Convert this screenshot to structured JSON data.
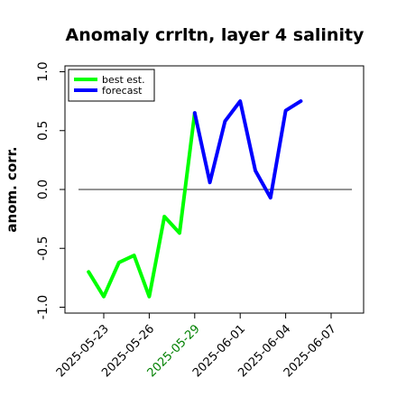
{
  "chart_data": {
    "type": "line",
    "title": "Anomaly crrltn, layer 4 salinity",
    "xlabel": "",
    "ylabel": "anom. corr.",
    "ylim": [
      -1.0,
      1.0
    ],
    "yticks": [
      -1.0,
      -0.5,
      0.0,
      0.5,
      1.0
    ],
    "ytick_labels": [
      "-1.0",
      "-0.5",
      "0.0",
      "0.5",
      "1.0"
    ],
    "xticks": [
      "2025-05-23",
      "2025-05-26",
      "2025-05-29",
      "2025-06-01",
      "2025-06-04",
      "2025-06-07"
    ],
    "xtick_colors": [
      "#000000",
      "#000000",
      "#008000",
      "#000000",
      "#000000",
      "#000000"
    ],
    "reference_line": 0.0,
    "legend_position": "top-left",
    "series": [
      {
        "name": "best est.",
        "color": "#00ff00",
        "x": [
          "2025-05-22",
          "2025-05-23",
          "2025-05-24",
          "2025-05-25",
          "2025-05-26",
          "2025-05-27",
          "2025-05-28",
          "2025-05-29"
        ],
        "values": [
          -0.7,
          -0.91,
          -0.62,
          -0.56,
          -0.91,
          -0.23,
          -0.37,
          0.65
        ]
      },
      {
        "name": "forecast",
        "color": "#0000ff",
        "x": [
          "2025-05-29",
          "2025-05-30",
          "2025-05-31",
          "2025-06-01",
          "2025-06-02",
          "2025-06-03",
          "2025-06-04",
          "2025-06-05"
        ],
        "values": [
          0.65,
          0.06,
          0.58,
          0.75,
          0.16,
          -0.07,
          0.67,
          0.75
        ]
      }
    ]
  }
}
